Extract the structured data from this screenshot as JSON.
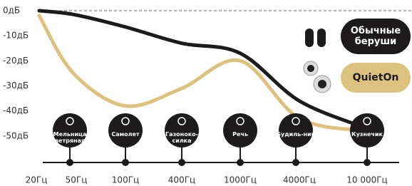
{
  "chart_data": {
    "type": "line",
    "categories": [
      "20Гц",
      "50Гц",
      "100Гц",
      "400Гц",
      "1000Гц",
      "4000Гц",
      "10 000Гц"
    ],
    "ylim": [
      -60,
      0
    ],
    "yticks": [
      {
        "value": 0,
        "label": "0дБ"
      },
      {
        "value": -10,
        "label": "-10дБ"
      },
      {
        "value": -20,
        "label": "-20дБ"
      },
      {
        "value": -30,
        "label": "-30дБ"
      },
      {
        "value": -40,
        "label": "-40дБ"
      },
      {
        "value": -50,
        "label": "-50дБ"
      }
    ],
    "series": [
      {
        "name": "Обычные беруши",
        "color": "#1c1a1a",
        "values": [
          0,
          -1.5,
          -6.5,
          -13,
          -17,
          -36,
          -47
        ]
      },
      {
        "name": "QuietOn",
        "color": "#dcc27e",
        "values": [
          -2,
          -25,
          -38,
          -31,
          -20,
          -43,
          -48
        ]
      }
    ],
    "annotations": [
      "Мельница ветряная",
      "Самолет",
      "Газоноко-силка",
      "Речь",
      "Будиль-ник",
      "Кузнечик"
    ]
  }
}
